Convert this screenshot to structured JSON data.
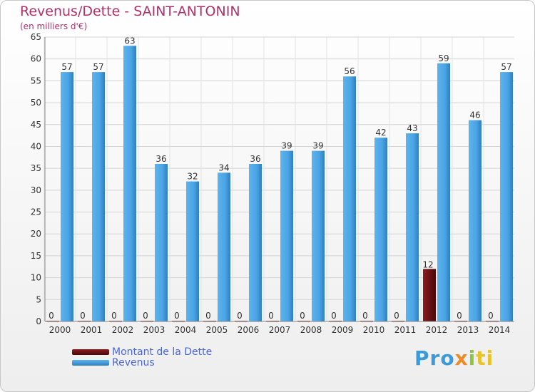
{
  "title": "Revenus/Dette - SAINT-ANTONIN",
  "subtitle": "(en milliers d'€)",
  "logo": {
    "parts": [
      "Pro",
      "x",
      "i",
      "ti"
    ]
  },
  "colors": {
    "dette": "#6b0f12",
    "revenus": "#4aa3e4",
    "title": "#b0306a",
    "legend_text": "#4a66d8"
  },
  "chart_data": {
    "type": "bar",
    "categories": [
      "2000",
      "2001",
      "2002",
      "2003",
      "2004",
      "2005",
      "2006",
      "2007",
      "2008",
      "2009",
      "2010",
      "2011",
      "2012",
      "2013",
      "2014"
    ],
    "series": [
      {
        "name": "Montant de la Dette",
        "values": [
          0,
          0,
          0,
          0,
          0,
          0,
          0,
          0,
          0,
          0,
          0,
          0,
          12,
          0,
          0
        ]
      },
      {
        "name": "Revenus",
        "values": [
          57,
          57,
          63,
          36,
          32,
          34,
          36,
          39,
          39,
          56,
          42,
          43,
          59,
          46,
          57
        ]
      }
    ],
    "yticks": [
      0,
      5,
      10,
      15,
      20,
      25,
      30,
      35,
      40,
      45,
      50,
      55,
      60,
      65
    ],
    "ylim": [
      0,
      65
    ],
    "grid": true,
    "legend_position": "bottom-left"
  },
  "legend": {
    "dette_label": "Montant de la Dette",
    "revenus_label": "Revenus"
  }
}
